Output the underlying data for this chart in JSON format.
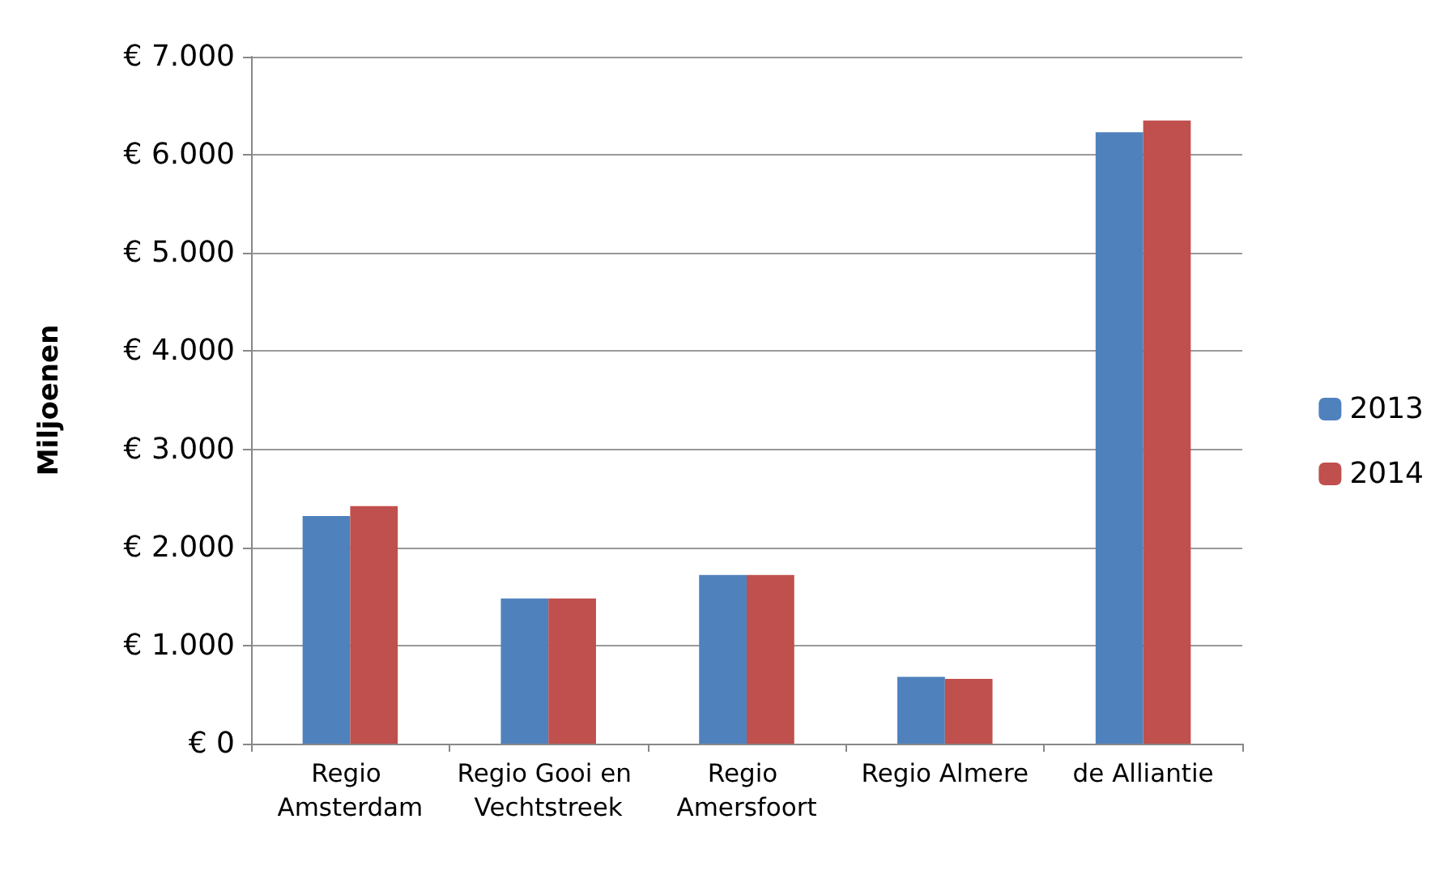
{
  "chart_data": {
    "type": "bar",
    "ylabel": "Miljoenen",
    "categories": [
      "Regio Amsterdam",
      "Regio Gooi en Vechtstreek",
      "Regio Amersfoort",
      "Regio Almere",
      "de Alliantie"
    ],
    "series": [
      {
        "name": "2013",
        "color": "#4f81bd",
        "values": [
          2320,
          1480,
          1720,
          680,
          6230
        ]
      },
      {
        "name": "2014",
        "color": "#c0504d",
        "values": [
          2420,
          1480,
          1720,
          660,
          6350
        ]
      }
    ],
    "ylim": [
      0,
      7000
    ],
    "yticks": [
      {
        "value": 0,
        "label": "€ 0"
      },
      {
        "value": 1000,
        "label": "€ 1.000"
      },
      {
        "value": 2000,
        "label": "€ 2.000"
      },
      {
        "value": 3000,
        "label": "€ 3.000"
      },
      {
        "value": 4000,
        "label": "€ 4.000"
      },
      {
        "value": 5000,
        "label": "€ 5.000"
      },
      {
        "value": 6000,
        "label": "€ 6.000"
      },
      {
        "value": 7000,
        "label": "€ 7.000"
      }
    ],
    "grid": "y",
    "legend": "right"
  }
}
